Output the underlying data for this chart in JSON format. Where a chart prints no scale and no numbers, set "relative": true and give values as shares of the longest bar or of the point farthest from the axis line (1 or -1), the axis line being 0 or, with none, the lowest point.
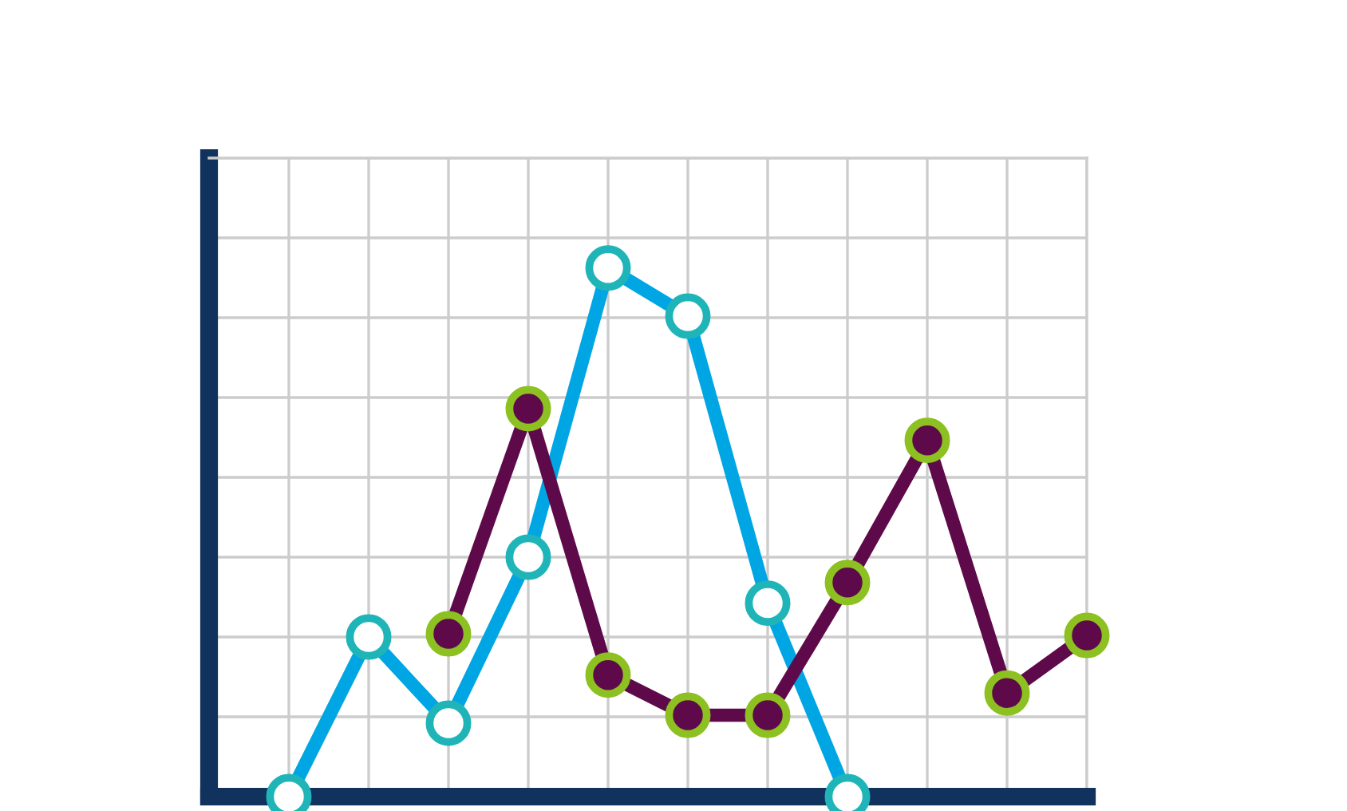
{
  "chart_data": {
    "type": "line",
    "relative": true,
    "grid": true,
    "tick_labels": false,
    "marker": "circle",
    "legend": false,
    "categories": [
      null,
      null,
      null,
      null,
      null,
      null,
      null,
      null,
      null,
      null,
      null,
      null
    ],
    "series": [
      {
        "color": "#00a6e4",
        "values": [
          null,
          0,
          0.302,
          0.139,
          0.453,
          1,
          0.909,
          0.366,
          0,
          null,
          null,
          null
        ]
      },
      {
        "color": "#5e0a4a",
        "values": [
          null,
          null,
          null,
          0.308,
          0.734,
          0.23,
          0.154,
          0.154,
          0.405,
          0.674,
          0.196,
          0.305
        ]
      }
    ]
  }
}
